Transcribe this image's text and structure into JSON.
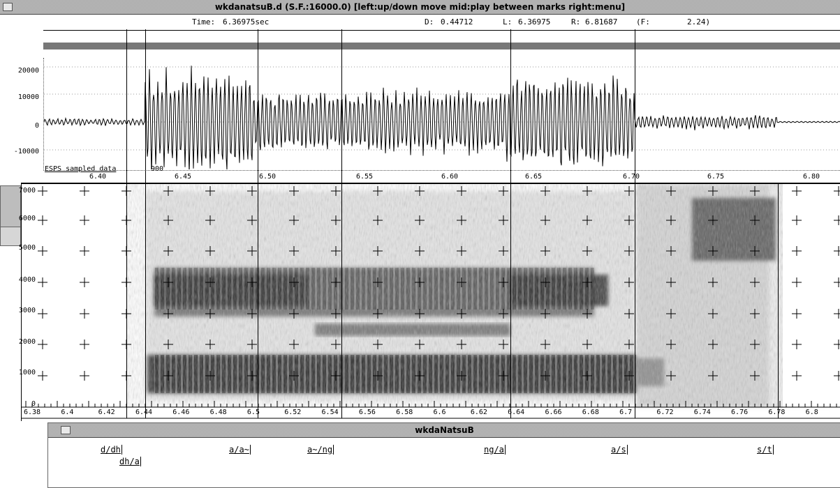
{
  "window": {
    "title": "wkdanatsuB.d (S.F.:16000.0) [left:up/down move  mid:play between marks  right:menu]"
  },
  "readout": {
    "time_label": "Time:",
    "time_value": "6.36975sec",
    "d_label": "D:",
    "d_value": "0.44712",
    "l_label": "L:",
    "l_value": "6.36975",
    "r_label": "R:",
    "r_value": "6.81687",
    "f_label": "(F:",
    "f_value": "2.24)"
  },
  "waveform": {
    "y_ticks": [
      "20000",
      "10000",
      "0",
      "-10000"
    ],
    "x_ticks": [
      "6.40",
      "6.45",
      "6.50",
      "6.55",
      "6.60",
      "6.65",
      "6.70",
      "6.75",
      "6.80"
    ],
    "corner_label": "ESPS sampled data",
    "cursor_text": "900"
  },
  "spectrogram": {
    "y_ticks": [
      "7000",
      "6000",
      "5000",
      "4000",
      "3000",
      "2000",
      "1000",
      "0"
    ],
    "x_ticks": [
      "6.38",
      "6.4",
      "6.42",
      "6.44",
      "6.46",
      "6.48",
      "6.5",
      "6.52",
      "6.54",
      "6.56",
      "6.58",
      "6.6",
      "6.62",
      "6.64",
      "6.66",
      "6.68",
      "6.7",
      "6.72",
      "6.74",
      "6.76",
      "6.78",
      "6.8"
    ]
  },
  "labels_window": {
    "title": "wkdaNatsuB",
    "segments": [
      "d/dh",
      "dh/a",
      "a/a~",
      "a~/ng",
      "ng/a",
      "a/s",
      "s/t"
    ]
  }
}
